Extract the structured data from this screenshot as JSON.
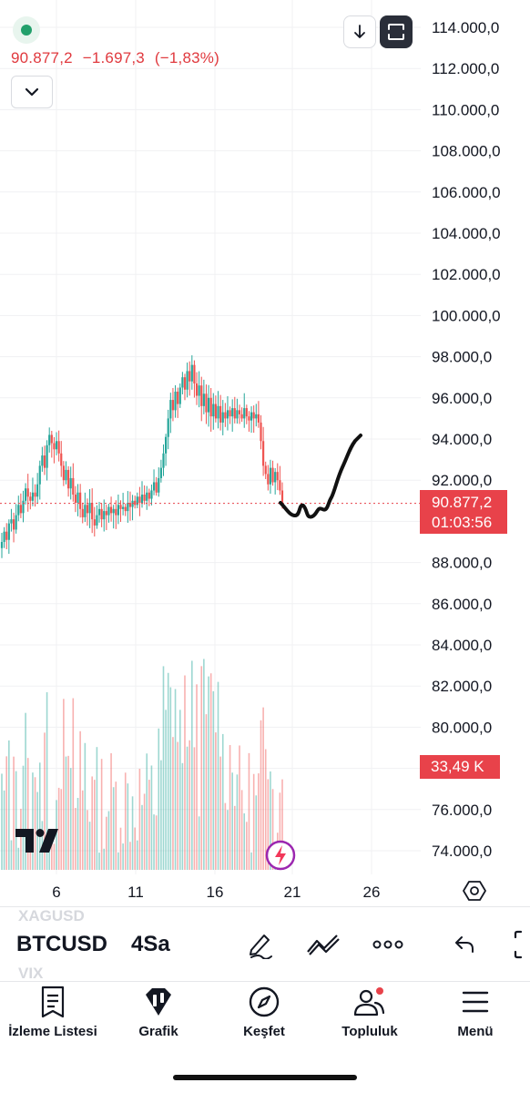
{
  "header": {
    "last_price": "90.877,2",
    "change": "−1.697,3",
    "change_pct": "(−1,83%)",
    "status": "market-open",
    "colors": {
      "up": "#26a69a",
      "down": "#ef5350",
      "accent_red": "#e8424a"
    }
  },
  "buttons": {
    "download_icon": "arrow-down-icon",
    "fullscreen_icon": "fullscreen-icon",
    "collapse_icon": "chevron-down-icon"
  },
  "chart_data": {
    "type": "candlestick",
    "price_axis": {
      "ticks": [
        114000,
        112000,
        110000,
        108000,
        106000,
        104000,
        102000,
        100000,
        98000,
        96000,
        94000,
        92000,
        90000,
        88000,
        86000,
        84000,
        82000,
        80000,
        78000,
        76000,
        74000
      ],
      "tick_labels": [
        "114.000,0",
        "112.000,0",
        "110.000,0",
        "108.000,0",
        "106.000,0",
        "104.000,0",
        "102.000,0",
        "100.000,0",
        "98.000,0",
        "96.000,0",
        "94.000,0",
        "92.000,0",
        "90.000,0",
        "88.000,0",
        "86.000,0",
        "84.000,0",
        "82.000,0",
        "80.000,0",
        "78.000,0",
        "76.000,0",
        "74.000,0"
      ]
    },
    "time_axis": {
      "ticks": [
        6,
        11,
        16,
        21,
        26
      ],
      "tick_labels": [
        "6",
        "11",
        "16",
        "21",
        "26"
      ]
    },
    "interval": "4Sa",
    "series": [
      {
        "name": "price",
        "close_path": [
          89.0,
          89.5,
          89.1,
          89.9,
          90.1,
          89.6,
          90.3,
          90.8,
          90.4,
          91.0,
          91.6,
          91.2,
          91.0,
          91.4,
          91.2,
          91.8,
          92.7,
          93.2,
          92.6,
          93.7,
          94.2,
          93.8,
          93.5,
          93.9,
          93.3,
          92.7,
          92.0,
          92.5,
          91.6,
          92.1,
          91.3,
          90.9,
          91.4,
          90.6,
          90.2,
          90.8,
          90.4,
          90.9,
          90.1,
          89.8,
          90.3,
          90.6,
          90.1,
          90.5,
          90.3,
          90.7,
          90.4,
          90.6,
          90.3,
          90.8,
          90.6,
          90.7,
          90.5,
          90.9,
          90.7,
          91.0,
          90.8,
          91.2,
          90.9,
          91.3,
          91.0,
          91.4,
          91.1,
          91.5,
          91.9,
          91.4,
          92.1,
          92.6,
          93.3,
          94.1,
          95.0,
          95.9,
          95.4,
          96.3,
          95.7,
          96.5,
          97.0,
          96.4,
          97.3,
          96.8,
          97.6,
          96.7,
          96.1,
          96.6,
          95.6,
          96.2,
          95.3,
          96.0,
          95.1,
          95.7,
          95.0,
          95.6,
          94.8,
          95.3,
          95.0,
          95.4,
          95.1,
          95.5,
          95.0,
          95.4,
          95.2,
          95.0,
          95.5,
          95.1,
          94.9,
          95.3,
          95.0,
          95.2,
          94.8,
          93.9,
          92.7,
          92.3,
          91.8,
          92.6,
          91.9,
          92.4,
          92.0,
          91.5,
          90.9
        ]
      }
    ],
    "current_price": 90877.2,
    "current_price_label": "90.877,2",
    "countdown": "01:03:56",
    "volume_label": "33,49 K",
    "drawing": "hand-drawn projection curve (black)"
  },
  "ghost_symbols": {
    "above": "XAGUSD",
    "below": "VIX"
  },
  "toolbar": {
    "symbol": "BTCUSD",
    "interval": "4Sa",
    "tools": [
      "pen-icon",
      "trend-tool-icon",
      "more-icon",
      "undo-icon",
      "bracket-icon"
    ]
  },
  "bottom_nav": [
    {
      "label": "İzleme Listesi",
      "icon": "watchlist-icon"
    },
    {
      "label": "Grafik",
      "icon": "chart-icon"
    },
    {
      "label": "Keşfet",
      "icon": "compass-icon"
    },
    {
      "label": "Topluluk",
      "icon": "community-icon"
    },
    {
      "label": "Menü",
      "icon": "menu-icon"
    }
  ]
}
